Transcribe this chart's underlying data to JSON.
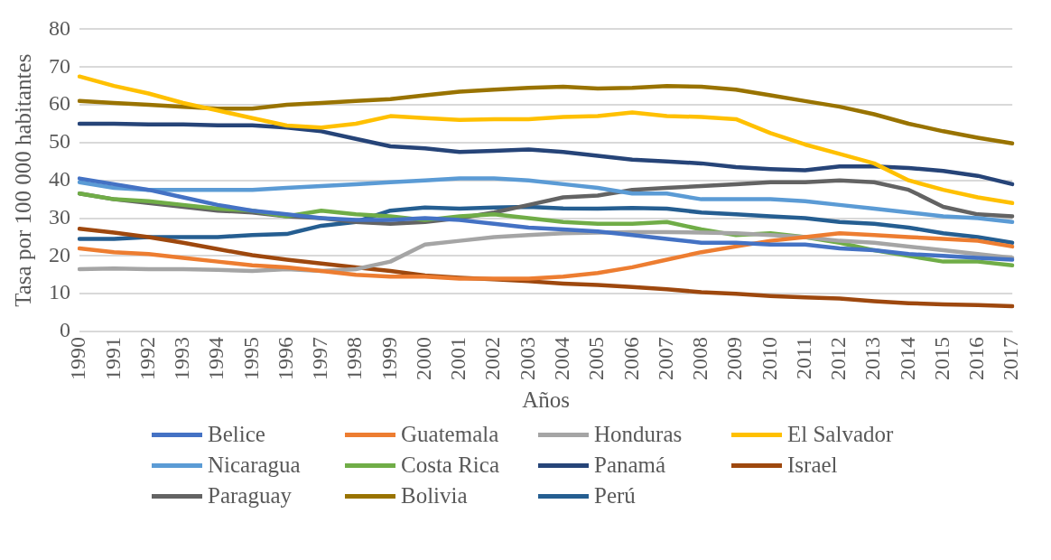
{
  "chart_data": {
    "type": "line",
    "xlabel": "Años",
    "ylabel": "Tasa por 100 000 habitantes",
    "categories": [
      "1990",
      "1991",
      "1992",
      "1993",
      "1994",
      "1995",
      "1996",
      "1997",
      "1998",
      "1999",
      "2000",
      "2001",
      "2002",
      "2003",
      "2004",
      "2005",
      "2006",
      "2007",
      "2008",
      "2009",
      "2010",
      "2011",
      "2012",
      "2013",
      "2014",
      "2015",
      "2016",
      "2017"
    ],
    "ylim": [
      0,
      80
    ],
    "yticks": [
      0,
      10,
      20,
      30,
      40,
      50,
      60,
      70,
      80
    ],
    "grid": "y",
    "legend": "bottom",
    "marker": "none",
    "line_style": "solid",
    "series": [
      {
        "name": "Belice",
        "color": "#4472c4",
        "values": [
          40.5,
          39,
          37.5,
          35.5,
          33.5,
          32,
          31,
          30,
          29.5,
          29.5,
          30,
          29.5,
          28.5,
          27.5,
          27,
          26.5,
          25.5,
          24.5,
          23.5,
          23.5,
          23,
          23,
          22,
          21.5,
          20.5,
          20,
          19.5,
          19
        ]
      },
      {
        "name": "Guatemala",
        "color": "#ed7d31",
        "values": [
          22,
          21,
          20.5,
          19.5,
          18.5,
          17.5,
          17,
          16,
          15,
          14.5,
          14.5,
          14,
          14,
          14,
          14.5,
          15.5,
          17,
          19,
          21,
          22.5,
          24,
          25,
          26,
          25.5,
          25,
          24.5,
          24,
          22.5
        ]
      },
      {
        "name": "Honduras",
        "color": "#a5a5a5",
        "values": [
          16.5,
          16.7,
          16.5,
          16.5,
          16.3,
          16,
          16.5,
          16,
          16.5,
          18.5,
          23,
          24,
          25,
          25.5,
          26,
          26.2,
          26.3,
          26.3,
          26.2,
          26,
          25.5,
          25,
          24,
          23.5,
          22.5,
          21.5,
          20.5,
          19.5
        ]
      },
      {
        "name": "El Salvador",
        "color": "#ffc000",
        "values": [
          67.5,
          65,
          63,
          60.5,
          58.5,
          56.5,
          54.5,
          54,
          55,
          57,
          56.5,
          56,
          56.2,
          56.2,
          56.8,
          57,
          58,
          57,
          56.8,
          56.2,
          52.5,
          49.5,
          47,
          44.5,
          40,
          37.5,
          35.5,
          34
        ]
      },
      {
        "name": "Nicaragua",
        "color": "#5b9bd5",
        "values": [
          39.5,
          38,
          37.5,
          37.5,
          37.5,
          37.5,
          38,
          38.5,
          39,
          39.5,
          40,
          40.5,
          40.5,
          40,
          39,
          38,
          36.5,
          36.5,
          35,
          35,
          35,
          34.5,
          33.5,
          32.5,
          31.5,
          30.5,
          30,
          29
        ]
      },
      {
        "name": "Costa Rica",
        "color": "#70ad47",
        "values": [
          36.5,
          35,
          34.5,
          33.5,
          32.5,
          32,
          30.5,
          32,
          31,
          30.5,
          29.5,
          30.5,
          31,
          30,
          29,
          28.5,
          28.5,
          29,
          27,
          25.5,
          26,
          25,
          23.5,
          21.5,
          20,
          18.5,
          18.5,
          17.5
        ]
      },
      {
        "name": "Panamá",
        "color": "#264478",
        "values": [
          55,
          55,
          54.8,
          54.8,
          54.6,
          54.6,
          54,
          53,
          51,
          49,
          48.5,
          47.5,
          47.8,
          48.2,
          47.5,
          46.5,
          45.5,
          45,
          44.5,
          43.5,
          43,
          42.7,
          43.7,
          43.7,
          43.3,
          42.5,
          41.2,
          39
        ]
      },
      {
        "name": "Israel",
        "color": "#9e480e",
        "values": [
          27.2,
          26.2,
          25,
          23.5,
          21.8,
          20.2,
          19,
          18,
          17,
          16,
          14.8,
          14.2,
          13.8,
          13.3,
          12.7,
          12.3,
          11.8,
          11.2,
          10.4,
          10,
          9.4,
          9,
          8.7,
          8,
          7.5,
          7.2,
          7,
          6.7
        ]
      },
      {
        "name": "Paraguay",
        "color": "#636363",
        "values": [
          36.5,
          35,
          34,
          33,
          32,
          31.5,
          30.5,
          30,
          29,
          28.5,
          29,
          30,
          31.5,
          33.5,
          35.5,
          36,
          37.5,
          38,
          38.5,
          39,
          39.5,
          39.5,
          40,
          39.5,
          37.5,
          33,
          31,
          30.5
        ]
      },
      {
        "name": "Bolivia",
        "color": "#997300",
        "values": [
          61,
          60.5,
          60,
          59.5,
          59,
          59,
          60,
          60.5,
          61,
          61.5,
          62.5,
          63.5,
          64,
          64.5,
          64.8,
          64.3,
          64.5,
          65,
          64.8,
          64,
          62.5,
          61,
          59.5,
          57.5,
          55,
          53,
          51.3,
          49.8
        ]
      },
      {
        "name": "Perú",
        "color": "#255e91",
        "values": [
          24.5,
          24.5,
          25,
          25,
          25,
          25.5,
          25.8,
          28,
          29,
          32,
          32.8,
          32.5,
          32.8,
          33,
          32.6,
          32.5,
          32.7,
          32.5,
          31.5,
          31,
          30.5,
          30,
          29,
          28.5,
          27.5,
          26,
          25,
          23.5
        ]
      }
    ]
  }
}
